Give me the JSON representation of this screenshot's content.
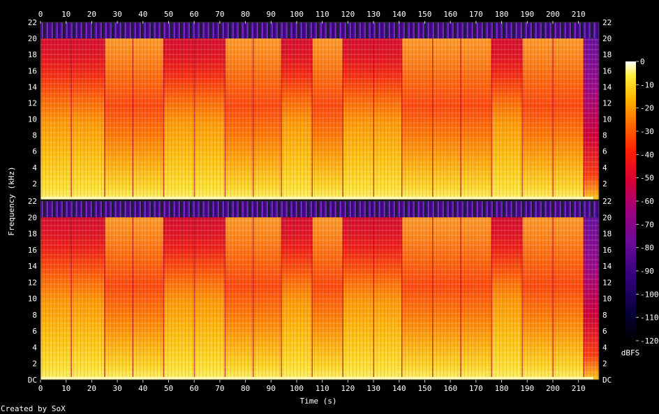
{
  "chart_data": {
    "type": "heatmap",
    "subtype": "spectrogram",
    "channels": 2,
    "xlabel": "Time (s)",
    "ylabel": "Frequency (kHz)",
    "xlim": [
      0,
      218
    ],
    "ylim_khz": [
      0,
      22
    ],
    "x_ticks": [
      0,
      10,
      20,
      30,
      40,
      50,
      60,
      70,
      80,
      90,
      100,
      110,
      120,
      130,
      140,
      150,
      160,
      170,
      180,
      190,
      200,
      210
    ],
    "x_tick_labels": [
      "0",
      "10",
      "20",
      "30",
      "40",
      "50",
      "60",
      "70",
      "80",
      "90",
      "100",
      "110",
      "120",
      "130",
      "140",
      "150",
      "160",
      "170",
      "180",
      "190",
      "200",
      "210"
    ],
    "y_ticks_top": [
      22,
      20,
      18,
      16,
      14,
      12,
      10,
      8,
      6,
      4,
      2
    ],
    "y_tick_labels_top": [
      "22",
      "20",
      "18",
      "16",
      "14",
      "12",
      "10",
      "8",
      "6",
      "4",
      "2"
    ],
    "y_ticks_bottom": [
      22,
      20,
      18,
      16,
      14,
      12,
      10,
      8,
      6,
      4,
      2,
      0
    ],
    "y_tick_labels_bottom": [
      "22",
      "20",
      "18",
      "16",
      "14",
      "12",
      "10",
      "8",
      "6",
      "4",
      "2",
      "DC"
    ],
    "colorbar": {
      "label": "dBFS",
      "ticks": [
        0,
        -10,
        -20,
        -30,
        -40,
        -50,
        -60,
        -70,
        -80,
        -90,
        -100,
        -110,
        -120
      ],
      "tick_labels": [
        "0",
        "-10",
        "-20",
        "-30",
        "-40",
        "-50",
        "-60",
        "-70",
        "-80",
        "-90",
        "-100",
        "-110",
        "-120"
      ],
      "range": [
        -120,
        0
      ]
    },
    "sections": [
      {
        "start": 0,
        "end": 12,
        "level": "bright"
      },
      {
        "start": 12,
        "end": 25,
        "level": "bright"
      },
      {
        "start": 25,
        "end": 36,
        "level": "dark"
      },
      {
        "start": 36,
        "end": 48,
        "level": "dark"
      },
      {
        "start": 48,
        "end": 60,
        "level": "bright"
      },
      {
        "start": 60,
        "end": 72,
        "level": "bright"
      },
      {
        "start": 72,
        "end": 83,
        "level": "dark"
      },
      {
        "start": 83,
        "end": 94,
        "level": "dark"
      },
      {
        "start": 94,
        "end": 106,
        "level": "bright"
      },
      {
        "start": 106,
        "end": 118,
        "level": "dark"
      },
      {
        "start": 118,
        "end": 130,
        "level": "bright"
      },
      {
        "start": 130,
        "end": 141,
        "level": "bright"
      },
      {
        "start": 141,
        "end": 153,
        "level": "dark"
      },
      {
        "start": 153,
        "end": 164,
        "level": "dark"
      },
      {
        "start": 164,
        "end": 176,
        "level": "dark"
      },
      {
        "start": 176,
        "end": 188,
        "level": "bright"
      },
      {
        "start": 188,
        "end": 200,
        "level": "dark"
      },
      {
        "start": 200,
        "end": 212,
        "level": "dark"
      },
      {
        "start": 212,
        "end": 218,
        "level": "fade"
      }
    ],
    "colors": {
      "background": "#000000",
      "text": "#ffffff",
      "tick": "#cccccc"
    }
  },
  "footer": {
    "credit": "Created by SoX"
  }
}
